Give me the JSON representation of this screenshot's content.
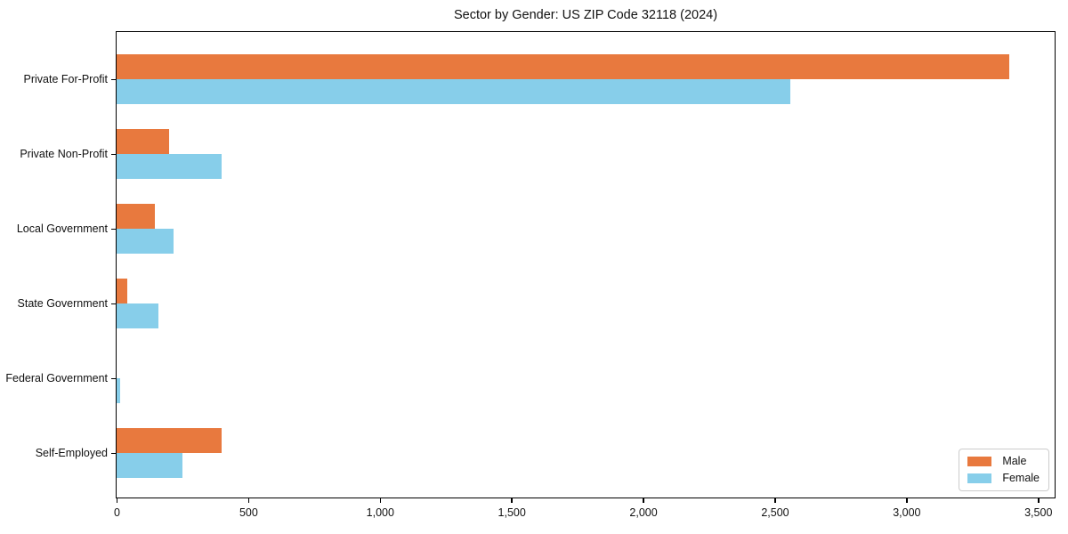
{
  "chart_data": {
    "type": "bar",
    "orientation": "horizontal",
    "title": "Sector by Gender: US ZIP Code 32118 (2024)",
    "categories": [
      "Private For-Profit",
      "Private Non-Profit",
      "Local Government",
      "State Government",
      "Federal Government",
      "Self-Employed"
    ],
    "series": [
      {
        "name": "Male",
        "color": "#e8793e",
        "values": [
          3390,
          200,
          145,
          40,
          0,
          400
        ]
      },
      {
        "name": "Female",
        "color": "#87ceea",
        "values": [
          2560,
          400,
          215,
          160,
          15,
          250
        ]
      }
    ],
    "xlabel": "",
    "ylabel": "",
    "xlim": [
      0,
      3560
    ],
    "x_ticks": [
      0,
      500,
      1000,
      1500,
      2000,
      2500,
      3000,
      3500
    ],
    "x_tick_labels": [
      "0",
      "500",
      "1,000",
      "1,500",
      "2,000",
      "2,500",
      "3,000",
      "3,500"
    ],
    "grid": false,
    "legend": {
      "position": "lower right",
      "entries": [
        "Male",
        "Female"
      ]
    },
    "colors": {
      "spine": "#000000",
      "text": "#111111",
      "background": "#ffffff"
    }
  }
}
